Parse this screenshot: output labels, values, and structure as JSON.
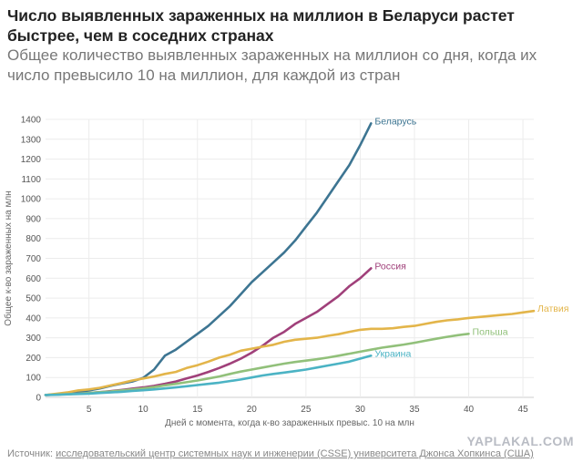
{
  "chart_data": {
    "type": "line",
    "title": "Число выявленных зараженных на миллион в Беларуси растет быстрее, чем в соседних странах",
    "subtitle": "Общее количество выявленных зараженных на миллион со дня, когда их число превысило 10 на миллион, для каждой из стран",
    "xlabel": "Дней с момента, когда к-во зараженных превыс. 10 на млн",
    "ylabel": "Общее к-во зараженных на млн",
    "xlim": [
      1,
      46
    ],
    "ylim": [
      0,
      1400
    ],
    "xticks": [
      5,
      10,
      15,
      20,
      25,
      30,
      35,
      40,
      45
    ],
    "yticks": [
      0,
      100,
      200,
      300,
      400,
      500,
      600,
      700,
      800,
      900,
      1000,
      1100,
      1200,
      1300,
      1400
    ],
    "grid": true,
    "series": [
      {
        "name": "Беларусь",
        "color": "#3d7592",
        "x": [
          1,
          2,
          3,
          4,
          5,
          6,
          7,
          8,
          9,
          10,
          11,
          12,
          13,
          14,
          15,
          16,
          17,
          18,
          19,
          20,
          21,
          22,
          23,
          24,
          25,
          26,
          27,
          28,
          29,
          30,
          31
        ],
        "y": [
          12,
          15,
          18,
          28,
          35,
          45,
          58,
          70,
          80,
          98,
          140,
          210,
          240,
          280,
          320,
          360,
          410,
          460,
          520,
          580,
          630,
          680,
          730,
          790,
          860,
          930,
          1010,
          1090,
          1170,
          1270,
          1380
        ]
      },
      {
        "name": "Россия",
        "color": "#a0407a",
        "x": [
          1,
          2,
          3,
          4,
          5,
          6,
          7,
          8,
          9,
          10,
          11,
          12,
          13,
          14,
          15,
          16,
          17,
          18,
          19,
          20,
          21,
          22,
          23,
          24,
          25,
          26,
          27,
          28,
          29,
          30,
          31
        ],
        "y": [
          12,
          14,
          16,
          19,
          22,
          26,
          31,
          37,
          44,
          50,
          58,
          68,
          80,
          95,
          110,
          128,
          148,
          170,
          195,
          225,
          260,
          300,
          330,
          370,
          400,
          430,
          470,
          510,
          560,
          600,
          650
        ]
      },
      {
        "name": "Латвия",
        "color": "#e3b54a",
        "x": [
          1,
          2,
          3,
          4,
          5,
          6,
          7,
          8,
          9,
          10,
          11,
          12,
          13,
          14,
          15,
          16,
          17,
          18,
          19,
          20,
          21,
          22,
          23,
          24,
          25,
          26,
          27,
          28,
          29,
          30,
          31,
          32,
          33,
          34,
          35,
          36,
          37,
          38,
          39,
          40,
          41,
          42,
          43,
          44,
          45,
          46
        ],
        "y": [
          12,
          18,
          25,
          35,
          40,
          48,
          60,
          72,
          85,
          95,
          105,
          118,
          128,
          148,
          162,
          180,
          200,
          215,
          235,
          245,
          255,
          265,
          280,
          290,
          295,
          300,
          310,
          318,
          330,
          340,
          345,
          345,
          348,
          355,
          360,
          370,
          380,
          388,
          393,
          400,
          405,
          410,
          415,
          420,
          428,
          435
        ]
      },
      {
        "name": "Польша",
        "color": "#91c07a",
        "x": [
          1,
          2,
          3,
          4,
          5,
          6,
          7,
          8,
          9,
          10,
          11,
          12,
          13,
          14,
          15,
          16,
          17,
          18,
          19,
          20,
          21,
          22,
          23,
          24,
          25,
          26,
          27,
          28,
          29,
          30,
          31,
          32,
          33,
          34,
          35,
          36,
          37,
          38,
          39,
          40
        ],
        "y": [
          12,
          14,
          16,
          19,
          22,
          26,
          30,
          35,
          40,
          45,
          52,
          60,
          68,
          76,
          85,
          95,
          105,
          118,
          130,
          140,
          150,
          160,
          170,
          178,
          185,
          192,
          200,
          210,
          220,
          230,
          240,
          250,
          258,
          266,
          275,
          285,
          295,
          305,
          313,
          320
        ]
      },
      {
        "name": "Украина",
        "color": "#4bb3c4",
        "x": [
          1,
          2,
          3,
          4,
          5,
          6,
          7,
          8,
          9,
          10,
          11,
          12,
          13,
          14,
          15,
          16,
          17,
          18,
          19,
          20,
          21,
          22,
          23,
          24,
          25,
          26,
          27,
          28,
          29,
          30,
          31
        ],
        "y": [
          12,
          13,
          15,
          17,
          19,
          22,
          25,
          28,
          32,
          36,
          40,
          45,
          50,
          56,
          62,
          68,
          74,
          82,
          90,
          100,
          110,
          118,
          125,
          132,
          140,
          150,
          160,
          170,
          180,
          195,
          210
        ]
      }
    ]
  },
  "source": {
    "prefix": "Источник: ",
    "link": "исследовательский центр системных наук и инженерии (CSSE) университета Джонса Хопкинса (США)"
  },
  "watermark": "YAPLAKAL.COM"
}
